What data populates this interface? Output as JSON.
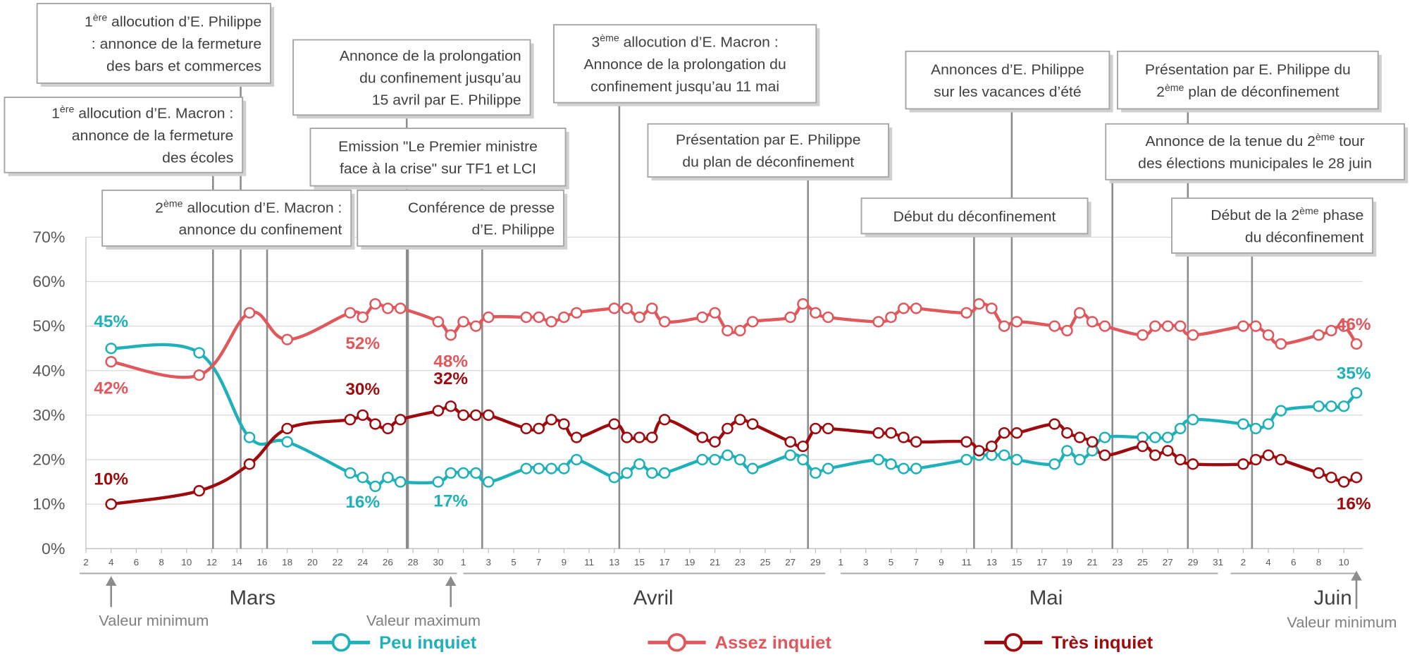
{
  "chart_data": {
    "type": "line",
    "x": [
      4,
      11,
      15,
      18,
      23,
      24,
      25,
      26,
      27,
      30,
      31,
      32,
      33,
      34,
      37,
      38,
      39,
      40,
      41,
      44,
      45,
      46,
      47,
      48,
      51,
      52,
      53,
      54,
      55,
      58,
      59,
      60,
      61,
      65,
      66,
      67,
      68,
      72,
      73,
      74,
      75,
      76,
      79,
      80,
      81,
      82,
      83,
      86,
      87,
      88,
      89,
      90,
      94,
      95,
      96,
      97,
      100,
      101,
      102,
      103
    ],
    "xlim": [
      2,
      103.5
    ],
    "xticks": [
      2,
      4,
      6,
      8,
      10,
      12,
      14,
      16,
      18,
      20,
      22,
      24,
      26,
      28,
      30,
      {
        "value": 32,
        "label": "1"
      },
      {
        "value": 34,
        "label": "3"
      },
      {
        "value": 36,
        "label": "5"
      },
      {
        "value": 38,
        "label": "7"
      },
      {
        "value": 40,
        "label": "9"
      },
      {
        "value": 42,
        "label": "11"
      },
      {
        "value": 44,
        "label": "13"
      },
      {
        "value": 46,
        "label": "15"
      },
      {
        "value": 48,
        "label": "17"
      },
      {
        "value": 50,
        "label": "19"
      },
      {
        "value": 52,
        "label": "21"
      },
      {
        "value": 54,
        "label": "23"
      },
      {
        "value": 56,
        "label": "25"
      },
      {
        "value": 58,
        "label": "27"
      },
      {
        "value": 60,
        "label": "29"
      },
      {
        "value": 62,
        "label": "1"
      },
      {
        "value": 64,
        "label": "3"
      },
      {
        "value": 66,
        "label": "5"
      },
      {
        "value": 68,
        "label": "7"
      },
      {
        "value": 70,
        "label": "9"
      },
      {
        "value": 72,
        "label": "11"
      },
      {
        "value": 74,
        "label": "13"
      },
      {
        "value": 76,
        "label": "15"
      },
      {
        "value": 78,
        "label": "17"
      },
      {
        "value": 80,
        "label": "19"
      },
      {
        "value": 82,
        "label": "21"
      },
      {
        "value": 84,
        "label": "23"
      },
      {
        "value": 86,
        "label": "25"
      },
      {
        "value": 88,
        "label": "27"
      },
      {
        "value": 90,
        "label": "29"
      },
      {
        "value": 92,
        "label": "31"
      },
      {
        "value": 94,
        "label": "2"
      },
      {
        "value": 96,
        "label": "4"
      },
      {
        "value": 98,
        "label": "6"
      },
      {
        "value": 100,
        "label": "8"
      },
      {
        "value": 102,
        "label": "10"
      }
    ],
    "months": [
      "Mars",
      "Avril",
      "Mai",
      "Juin"
    ],
    "ylim": [
      0,
      70
    ],
    "yticks": [
      {
        "value": 0,
        "label": "0%"
      },
      {
        "value": 10,
        "label": "10%"
      },
      {
        "value": 20,
        "label": "20%"
      },
      {
        "value": 30,
        "label": "30%"
      },
      {
        "value": 40,
        "label": "40%"
      },
      {
        "value": 50,
        "label": "50%"
      },
      {
        "value": 60,
        "label": "60%"
      },
      {
        "value": 70,
        "label": "70%"
      }
    ],
    "grid": true,
    "series": [
      {
        "name": "Peu inquiet",
        "color": "#1fb1b9",
        "values": [
          45,
          44,
          25,
          24,
          17,
          16,
          14,
          16,
          15,
          15,
          17,
          17,
          17,
          15,
          18,
          18,
          18,
          18,
          20,
          16,
          17,
          19,
          17,
          17,
          20,
          20,
          21,
          20,
          18,
          21,
          20,
          17,
          18,
          20,
          19,
          18,
          18,
          20,
          21,
          21,
          21,
          20,
          19,
          22,
          20,
          22,
          25,
          25,
          25,
          25,
          27,
          29,
          28,
          27,
          28,
          31,
          32,
          32,
          32,
          35
        ],
        "value_labels": [
          "45%",
          null,
          null,
          null,
          null,
          "16%",
          null,
          null,
          null,
          null,
          "17%",
          null,
          null,
          null,
          null,
          null,
          null,
          null,
          null,
          null,
          null,
          null,
          null,
          null,
          null,
          null,
          null,
          null,
          null,
          null,
          null,
          null,
          null,
          null,
          null,
          null,
          null,
          null,
          null,
          null,
          null,
          null,
          null,
          null,
          null,
          null,
          null,
          null,
          null,
          null,
          null,
          null,
          null,
          null,
          null,
          null,
          null,
          null,
          null,
          "35%"
        ]
      },
      {
        "name": "Assez inquiet",
        "color": "#e0575c",
        "values": [
          42,
          39,
          53,
          47,
          53,
          52,
          55,
          54,
          54,
          51,
          48,
          51,
          50,
          52,
          52,
          52,
          51,
          52,
          53,
          54,
          54,
          52,
          54,
          51,
          52,
          53,
          49,
          49,
          51,
          52,
          55,
          53,
          52,
          51,
          52,
          54,
          54,
          53,
          55,
          54,
          50,
          51,
          50,
          49,
          53,
          51,
          50,
          48,
          50,
          50,
          50,
          48,
          50,
          50,
          48,
          46,
          48,
          49,
          50,
          46
        ],
        "value_labels": [
          "42%",
          null,
          null,
          null,
          null,
          "52%",
          null,
          null,
          null,
          null,
          "48%",
          null,
          null,
          null,
          null,
          null,
          null,
          null,
          null,
          null,
          null,
          null,
          null,
          null,
          null,
          null,
          null,
          null,
          null,
          null,
          null,
          null,
          null,
          null,
          null,
          null,
          null,
          null,
          null,
          null,
          null,
          null,
          null,
          null,
          null,
          null,
          null,
          null,
          null,
          null,
          null,
          null,
          null,
          null,
          null,
          null,
          null,
          null,
          null,
          "46%"
        ]
      },
      {
        "name": "Très inquiet",
        "color": "#9e0b0f",
        "values": [
          10,
          13,
          19,
          27,
          29,
          30,
          28,
          27,
          29,
          31,
          32,
          30,
          30,
          30,
          27,
          27,
          29,
          28,
          25,
          28,
          25,
          25,
          25,
          29,
          25,
          24,
          27,
          29,
          28,
          24,
          23,
          27,
          27,
          26,
          26,
          25,
          24,
          24,
          22,
          23,
          26,
          26,
          28,
          26,
          25,
          24,
          21,
          23,
          21,
          22,
          20,
          19,
          19,
          20,
          21,
          20,
          17,
          16,
          15,
          16
        ],
        "value_labels": [
          "10%",
          null,
          null,
          null,
          null,
          "30%",
          null,
          null,
          null,
          null,
          "32%",
          null,
          null,
          null,
          null,
          null,
          null,
          null,
          null,
          null,
          null,
          null,
          null,
          null,
          null,
          null,
          null,
          null,
          null,
          null,
          null,
          null,
          null,
          null,
          null,
          null,
          null,
          null,
          null,
          null,
          null,
          null,
          null,
          null,
          null,
          null,
          null,
          null,
          null,
          null,
          null,
          null,
          null,
          null,
          null,
          null,
          null,
          null,
          null,
          "16%"
        ]
      }
    ],
    "events": [
      {
        "x": 14.3,
        "lines": [
          [
            "1",
            "ère",
            " allocution d’E. Philippe"
          ],
          [
            ": annonce de la fermeture"
          ],
          [
            "des bars et commerces"
          ]
        ]
      },
      {
        "x": 12.1,
        "lines": [
          [
            "1",
            "ère",
            " allocution d’E. Macron :"
          ],
          [
            "annonce de la fermeture"
          ],
          [
            "des écoles"
          ]
        ]
      },
      {
        "x": 16.4,
        "lines": [
          [
            "2",
            "ème",
            " allocution d’E. Macron :"
          ],
          [
            "annonce du confinement"
          ]
        ]
      },
      {
        "x": 27.5,
        "lines": [
          [
            "Annonce de la prolongation"
          ],
          [
            "du confinement jusqu’au"
          ],
          [
            "15 avril par E. Philippe"
          ]
        ]
      },
      {
        "x": 33.5,
        "lines": [
          [
            "Emission \"Le Premier ministre"
          ],
          [
            "face à la crise\" sur TF1 et LCI"
          ]
        ]
      },
      {
        "x": 27.6,
        "lines": [
          [
            "Conférence de presse"
          ],
          [
            "d’E. Philippe"
          ]
        ]
      },
      {
        "x": 44.4,
        "lines": [
          [
            "3",
            "ème",
            " allocution d’E. Macron :"
          ],
          [
            "Annonce de la prolongation du"
          ],
          [
            "confinement jusqu’au 11 mai"
          ]
        ]
      },
      {
        "x": 59.4,
        "lines": [
          [
            "Présentation par E. Philippe"
          ],
          [
            "du plan de déconfinement"
          ]
        ]
      },
      {
        "x": 72.6,
        "lines": [
          [
            "Début du déconfinement"
          ]
        ]
      },
      {
        "x": 75.6,
        "lines": [
          [
            "Annonces d’E. Philippe"
          ],
          [
            "sur les vacances d’été"
          ]
        ]
      },
      {
        "x": 89.6,
        "lines": [
          [
            "Présentation par E. Philippe du"
          ],
          [
            "2",
            "ème",
            " plan de déconfinement"
          ]
        ]
      },
      {
        "x": 83.6,
        "lines": [
          [
            "Annonce de la tenue du 2",
            "ème",
            " tour"
          ],
          [
            "des élections municipales le 28 juin"
          ]
        ]
      },
      {
        "x": 94.7,
        "lines": [
          [
            "Début de la 2",
            "ème",
            " phase"
          ],
          [
            "du déconfinement"
          ]
        ]
      }
    ],
    "markers": [
      {
        "x": 4,
        "text": "Valeur minimum"
      },
      {
        "x": 31,
        "text": "Valeur maximum"
      },
      {
        "x": 103,
        "text": "Valeur minimum"
      }
    ]
  }
}
